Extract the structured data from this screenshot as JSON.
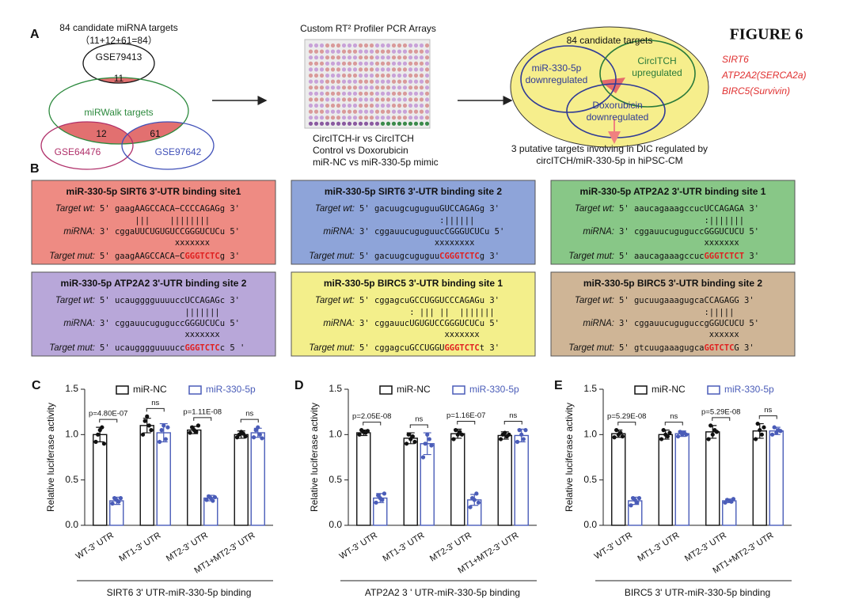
{
  "figure_label": "FIGURE 6",
  "panel_labels": [
    "A",
    "B",
    "C",
    "D",
    "E"
  ],
  "panel_a": {
    "venn_title": [
      "84 candidate miRNA targets",
      "（11+12+61=84）"
    ],
    "sets": [
      "GSE79413",
      "miRWalk targets",
      "GSE64476",
      "GSE97642"
    ],
    "overlaps": [
      11,
      12,
      61
    ],
    "array_title": "Custom RT² Profiler PCR Arrays",
    "comparisons": [
      "CircITCH-ir vs CircITCH",
      "Control vs Doxorubicin",
      "miR-NC vs miR-330-5p mimic"
    ],
    "target_venn": {
      "title": "84 candidate targets",
      "sets": [
        [
          "miR-330-5p",
          "downregulated"
        ],
        [
          "CircITCH",
          "upregulated"
        ],
        [
          "Doxorubicin",
          "downregulated"
        ]
      ]
    },
    "result": [
      "3 putative targets involving in DIC regulated by",
      "circITCH/miR-330-5p in hiPSC-CM"
    ],
    "genes": [
      "SIRT6",
      "ATP2A2(SERCA2a)",
      "BIRC5(Survivin)"
    ]
  },
  "panel_b": {
    "seq_labels": [
      "Target wt:",
      "miRNA:",
      "Target mut:"
    ],
    "boxes": [
      {
        "title": "miR-330-5p SIRT6 3'-UTR binding site1",
        "color": "#ee8b83",
        "wt": "5' gaagAAGCCACA−CCCCAGAGg 3'",
        "bonds": "       |||    ||||||||",
        "mirna": "3' cggaUUCUGUGUCCGGGUCUCu 5'",
        "crosses": "               xxxxxxx",
        "mut": [
          "5' gaagAAGCCACA−C",
          "GGGTCTC",
          "g 3'"
        ]
      },
      {
        "title": "miR-330-5p SIRT6 3'-UTR binding site 2",
        "color": "#8ea4d9",
        "wt": "5' gacuugcuguguuGUCCAGAGg 3'",
        "bonds": "                :||||||",
        "mirna": "3' cggauucuguguucCGGGUCUCu 5'",
        "crosses": "               xxxxxxxx",
        "mut": [
          "5' gacuugcuguguu",
          "CGGGTCTC",
          "g 3'"
        ]
      },
      {
        "title": "miR-330-5p ATP2A2  3'-UTR binding site 1",
        "color": "#88c787",
        "wt": "5' aaucagaaagccucUCCAGAGA 3'",
        "bonds": "                 :|||||||",
        "mirna": "3' cggauucuguguccGGGUCUCU 5'",
        "crosses": "                 xxxxxxx",
        "mut": [
          "5' aaucagaaagccuc",
          "GGGTCTCT",
          " 3'"
        ]
      },
      {
        "title": "miR-330-5p ATP2A2  3'-UTR binding site 2",
        "color": "#b8a7d9",
        "wt": "5' ucaugggguuuuccUCCAGAGc 3'",
        "bonds": "                 |||||||",
        "mirna": "3' cggauucuguguccGGGUCUCu 5'",
        "crosses": "                 xxxxxxx",
        "mut": [
          "5' ucaugggguuuucc",
          "GGGTCTC",
          "c 5 '"
        ]
      },
      {
        "title": "miR-330-5p BIRC5 3'-UTR binding site 1",
        "color": "#f3ef8b",
        "wt": "5' cggagcuGCCUGGUCCCAGAGu 3'",
        "bonds": "          : ||| ||  |||||||",
        "mirna": "3' cggauucUGUGUCCGGGUCUCu 5'",
        "crosses": "                 xxxxxxx",
        "mut": [
          "5' cggagcuGCCUGGU",
          "GGGTCTC",
          "t 3'"
        ]
      },
      {
        "title": "miR-330-5p BIRC5 3'-UTR binding site 2",
        "color": "#cfb596",
        "wt": "5' gucuugaaagugcaCCAGAGG 3'",
        "bonds": "                 :|||||",
        "mirna": "3' cggauucuguguccgGGUCUCU 5'",
        "crosses": "                  xxxxxx",
        "mut": [
          "5' gtcuugaaagugca",
          "GGTCTC",
          "G 3'"
        ]
      }
    ]
  },
  "chart_data": [
    {
      "type": "bar",
      "ylabel": "Relative luciferase activity",
      "xlabel": "SIRT6 3' UTR-miR-330-5p binding",
      "categories": [
        "WT-3' UTR",
        "MT1-3' UTR",
        "MT2-3' UTR",
        "MT1+MT2-3' UTR"
      ],
      "ylim": [
        0,
        1.5
      ],
      "yticks": [
        {
          "value": 0,
          "label": "0.0"
        },
        0.5,
        {
          "value": 1,
          "label": "1.0"
        },
        1.5
      ],
      "annotations": [
        "p=4.80E-07",
        "ns",
        "p=1.11E-08",
        "ns"
      ],
      "series": [
        {
          "name": "miR-NC",
          "color": "#111111",
          "values": [
            1.0,
            1.1,
            1.05,
            1.0
          ],
          "errors": [
            0.08,
            0.08,
            0.04,
            0.04
          ],
          "points": [
            [
              0.92,
              1.0,
              1.05,
              1.08,
              0.9
            ],
            [
              1.0,
              1.15,
              1.2,
              1.1,
              1.05
            ],
            [
              1.02,
              1.08,
              1.05,
              1.03,
              1.1
            ],
            [
              0.97,
              1.0,
              1.03,
              1.01,
              0.98
            ]
          ]
        },
        {
          "name": "miR-330-5p",
          "color": "#4a5cb8",
          "values": [
            0.27,
            1.02,
            0.3,
            1.02
          ],
          "errors": [
            0.04,
            0.1,
            0.03,
            0.05
          ],
          "points": [
            [
              0.24,
              0.3,
              0.28,
              0.26,
              0.3
            ],
            [
              0.92,
              1.05,
              1.1,
              0.95,
              1.08
            ],
            [
              0.28,
              0.32,
              0.3,
              0.27,
              0.31
            ],
            [
              0.97,
              1.05,
              1.08,
              1.0,
              0.96
            ]
          ]
        }
      ]
    },
    {
      "type": "bar",
      "ylabel": "Relative luciferase activity",
      "xlabel": "ATP2A2 3 ' UTR-miR-330-5p binding",
      "categories": [
        "WT-3' UTR",
        "MT1-3' UTR",
        "MT2-3' UTR",
        "MT1+MT2-3' UTR"
      ],
      "ylim": [
        0,
        1.5
      ],
      "yticks": [
        {
          "value": 0,
          "label": "0.0"
        },
        0.5,
        {
          "value": 1,
          "label": "1.0"
        },
        1.5
      ],
      "annotations": [
        "p=2.05E-08",
        "ns",
        "p=1.16E-07",
        "ns"
      ],
      "series": [
        {
          "name": "miR-NC",
          "color": "#111111",
          "values": [
            1.02,
            0.96,
            1.01,
            0.99
          ],
          "errors": [
            0.03,
            0.06,
            0.05,
            0.04
          ],
          "points": [
            [
              1.0,
              1.05,
              1.03,
              1.02,
              1.04
            ],
            [
              0.9,
              1.0,
              0.95,
              0.98,
              0.92
            ],
            [
              0.95,
              1.05,
              1.0,
              1.03,
              1.0
            ],
            [
              0.95,
              1.0,
              1.02,
              0.98,
              1.0
            ]
          ]
        },
        {
          "name": "miR-330-5p",
          "color": "#4a5cb8",
          "values": [
            0.3,
            0.9,
            0.28,
            0.99
          ],
          "errors": [
            0.05,
            0.12,
            0.06,
            0.07
          ],
          "points": [
            [
              0.25,
              0.33,
              0.3,
              0.28,
              0.35
            ],
            [
              0.75,
              0.9,
              1.0,
              0.95,
              0.88
            ],
            [
              0.2,
              0.3,
              0.28,
              0.35,
              0.25
            ],
            [
              0.92,
              1.05,
              1.0,
              0.95,
              1.05
            ]
          ]
        }
      ]
    },
    {
      "type": "bar",
      "ylabel": "Relative luciferase activity",
      "xlabel": "BIRC5 3' UTR-miR-330-5p binding",
      "categories": [
        "WT-3' UTR",
        "MT1-3' UTR",
        "MT2-3' UTR",
        "MT1+MT2-3' UTR"
      ],
      "ylim": [
        0,
        1.5
      ],
      "yticks": [
        {
          "value": 0,
          "label": "0.0"
        },
        0.5,
        {
          "value": 1,
          "label": "1.0"
        },
        1.5
      ],
      "annotations": [
        "p=5.29E-08",
        "ns",
        "p=5.29E-08",
        "ns"
      ],
      "series": [
        {
          "name": "miR-NC",
          "color": "#111111",
          "values": [
            1.01,
            1.0,
            1.03,
            1.04
          ],
          "errors": [
            0.04,
            0.05,
            0.07,
            0.08
          ],
          "points": [
            [
              0.97,
              1.05,
              1.0,
              1.02,
              0.98
            ],
            [
              0.95,
              1.05,
              1.0,
              0.98,
              1.02
            ],
            [
              0.95,
              1.1,
              1.0,
              1.05,
              1.03
            ],
            [
              0.95,
              1.12,
              1.05,
              1.0,
              1.08
            ]
          ]
        },
        {
          "name": "miR-330-5p",
          "color": "#4a5cb8",
          "values": [
            0.27,
            1.01,
            0.27,
            1.04
          ],
          "errors": [
            0.04,
            0.03,
            0.02,
            0.04
          ],
          "points": [
            [
              0.22,
              0.3,
              0.28,
              0.25,
              0.3
            ],
            [
              0.98,
              1.03,
              1.0,
              1.02,
              1.0
            ],
            [
              0.25,
              0.28,
              0.27,
              0.26,
              0.29
            ],
            [
              1.0,
              1.08,
              1.02,
              1.05,
              1.04
            ]
          ]
        }
      ]
    }
  ]
}
